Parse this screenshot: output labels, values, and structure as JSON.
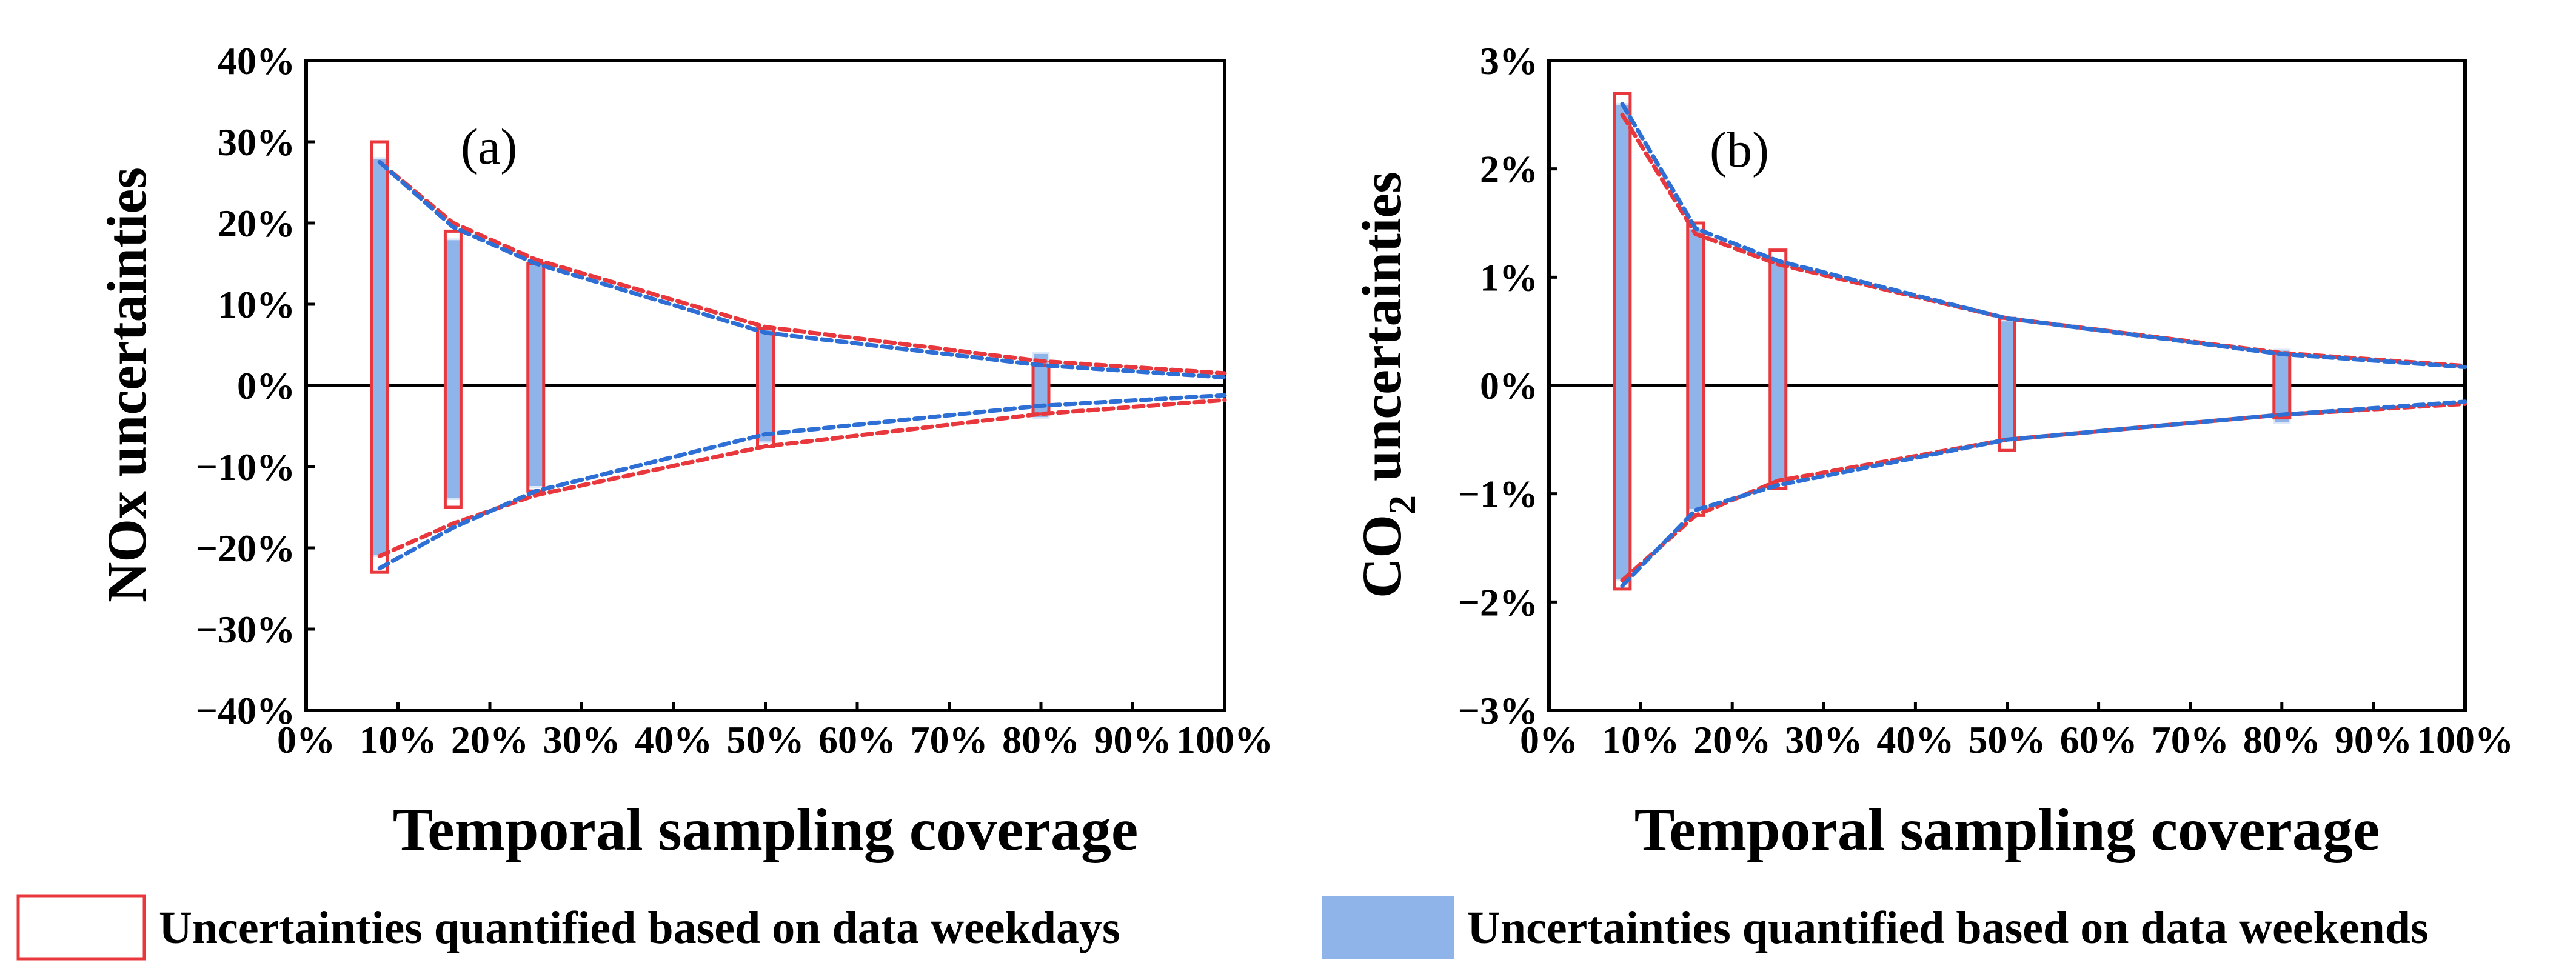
{
  "legend": {
    "weekdays_label": "Uncertainties quantified based on data weekdays",
    "weekends_label": "Uncertainties quantified based on data weekends"
  },
  "colors": {
    "weekdays": "#e8383d",
    "weekends": "#8fb4ea",
    "weekends_curve": "#2e6fd6",
    "axis": "#000000"
  },
  "chart_data": [
    {
      "type": "bar",
      "panel_label": "(a)",
      "ylabel_main": "NOx uncertainties",
      "xlabel": "Temporal sampling coverage",
      "xlim": [
        0,
        100
      ],
      "ylim": [
        -40,
        40
      ],
      "xticks": [
        "0%",
        "10%",
        "20%",
        "30%",
        "40%",
        "50%",
        "60%",
        "70%",
        "80%",
        "90%",
        "100%"
      ],
      "yticks": [
        "40%",
        "30%",
        "20%",
        "10%",
        "0%",
        "−10%",
        "−20%",
        "−30%",
        "−40%"
      ],
      "coverage": [
        8,
        16,
        25,
        50,
        80
      ],
      "series": [
        {
          "name": "weekdays",
          "upper": [
            30,
            19,
            15,
            7,
            2.5
          ],
          "lower": [
            -23,
            -15,
            -13,
            -7.5,
            -3.5
          ]
        },
        {
          "name": "weekends",
          "upper": [
            28,
            18,
            15,
            7,
            4
          ],
          "lower": [
            -21,
            -14,
            -12.5,
            -7,
            -4
          ]
        }
      ],
      "curves": [
        {
          "name": "weekdays",
          "upper": [
            [
              8,
              27.5
            ],
            [
              16,
              20
            ],
            [
              25,
              15.5
            ],
            [
              50,
              7.2
            ],
            [
              80,
              3.0
            ],
            [
              100,
              1.5
            ]
          ],
          "lower": [
            [
              8,
              -21
            ],
            [
              16,
              -17
            ],
            [
              25,
              -13.5
            ],
            [
              50,
              -7.5
            ],
            [
              80,
              -3.5
            ],
            [
              100,
              -1.8
            ]
          ]
        },
        {
          "name": "weekends",
          "upper": [
            [
              8,
              27.5
            ],
            [
              16,
              19.5
            ],
            [
              25,
              15
            ],
            [
              50,
              6.5
            ],
            [
              80,
              2.5
            ],
            [
              100,
              1.0
            ]
          ],
          "lower": [
            [
              8,
              -22.5
            ],
            [
              16,
              -17.5
            ],
            [
              25,
              -13
            ],
            [
              50,
              -6
            ],
            [
              80,
              -2.5
            ],
            [
              100,
              -1.2
            ]
          ]
        }
      ]
    },
    {
      "type": "bar",
      "panel_label": "(b)",
      "ylabel_main": "CO",
      "ylabel_sub": "2",
      "ylabel_rest": " uncertainties",
      "xlabel": "Temporal sampling coverage",
      "xlim": [
        0,
        100
      ],
      "ylim": [
        -3,
        3
      ],
      "xticks": [
        "0%",
        "10%",
        "20%",
        "30%",
        "40%",
        "50%",
        "60%",
        "70%",
        "80%",
        "90%",
        "100%"
      ],
      "yticks": [
        "3%",
        "2%",
        "1%",
        "0%",
        "−1%",
        "−2%",
        "−3%"
      ],
      "coverage": [
        8,
        16,
        25,
        50,
        80
      ],
      "series": [
        {
          "name": "weekdays",
          "upper": [
            2.7,
            1.5,
            1.25,
            0.62,
            0.3
          ],
          "lower": [
            -1.88,
            -1.2,
            -0.95,
            -0.6,
            -0.3
          ]
        },
        {
          "name": "weekends",
          "upper": [
            2.6,
            1.45,
            1.15,
            0.6,
            0.33
          ],
          "lower": [
            -1.8,
            -1.15,
            -0.9,
            -0.5,
            -0.35
          ]
        }
      ],
      "curves": [
        {
          "name": "weekdays",
          "upper": [
            [
              8,
              2.5
            ],
            [
              16,
              1.4
            ],
            [
              25,
              1.12
            ],
            [
              50,
              0.62
            ],
            [
              80,
              0.3
            ],
            [
              100,
              0.18
            ]
          ],
          "lower": [
            [
              8,
              -1.8
            ],
            [
              16,
              -1.2
            ],
            [
              25,
              -0.88
            ],
            [
              50,
              -0.5
            ],
            [
              80,
              -0.27
            ],
            [
              100,
              -0.17
            ]
          ]
        },
        {
          "name": "weekends",
          "upper": [
            [
              8,
              2.6
            ],
            [
              16,
              1.45
            ],
            [
              25,
              1.15
            ],
            [
              50,
              0.62
            ],
            [
              80,
              0.29
            ],
            [
              100,
              0.17
            ]
          ],
          "lower": [
            [
              8,
              -1.85
            ],
            [
              16,
              -1.15
            ],
            [
              25,
              -0.92
            ],
            [
              50,
              -0.5
            ],
            [
              80,
              -0.27
            ],
            [
              100,
              -0.15
            ]
          ]
        }
      ]
    }
  ]
}
